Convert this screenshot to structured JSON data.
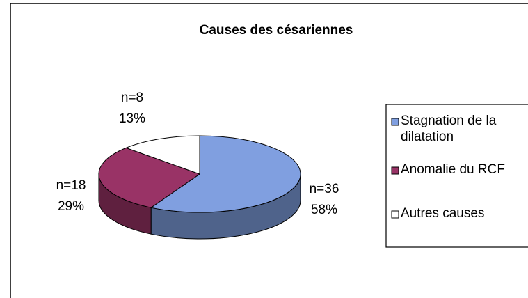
{
  "chart_data": {
    "type": "pie3d",
    "title": "Causes des césariennes",
    "categories": [
      "Stagnation de la dilatation",
      "Anomalie du RCF",
      "Autres causes"
    ],
    "values": [
      58,
      29,
      13
    ],
    "value_labels": [
      "58%",
      "29%",
      "13%"
    ],
    "counts": [
      36,
      18,
      8
    ],
    "count_labels": [
      "n=36",
      "n=18",
      "n=8"
    ],
    "colors": [
      "#809fe0",
      "#993366",
      "#ffffff"
    ],
    "legend": "right"
  }
}
